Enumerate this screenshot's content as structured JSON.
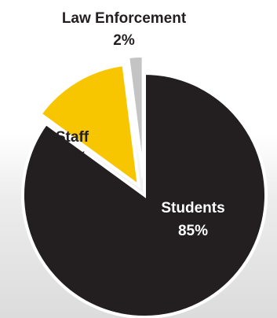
{
  "chart_data": {
    "type": "pie",
    "title": "",
    "slices": [
      {
        "label": "Students",
        "value": 85,
        "value_label": "85%",
        "color": "#231f20",
        "text_color": "#ffffff",
        "exploded": false
      },
      {
        "label": "Staff",
        "value": 13,
        "value_label": "13%",
        "color": "#f7c600",
        "text_color": "#231f20",
        "exploded": true
      },
      {
        "label": "Law Enforcement",
        "value": 2,
        "value_label": "2%",
        "color": "#c4c4c4",
        "text_color": "#231f20",
        "exploded": true
      }
    ],
    "legend": "none",
    "labels_position": "on-slice / outside for small slice"
  }
}
